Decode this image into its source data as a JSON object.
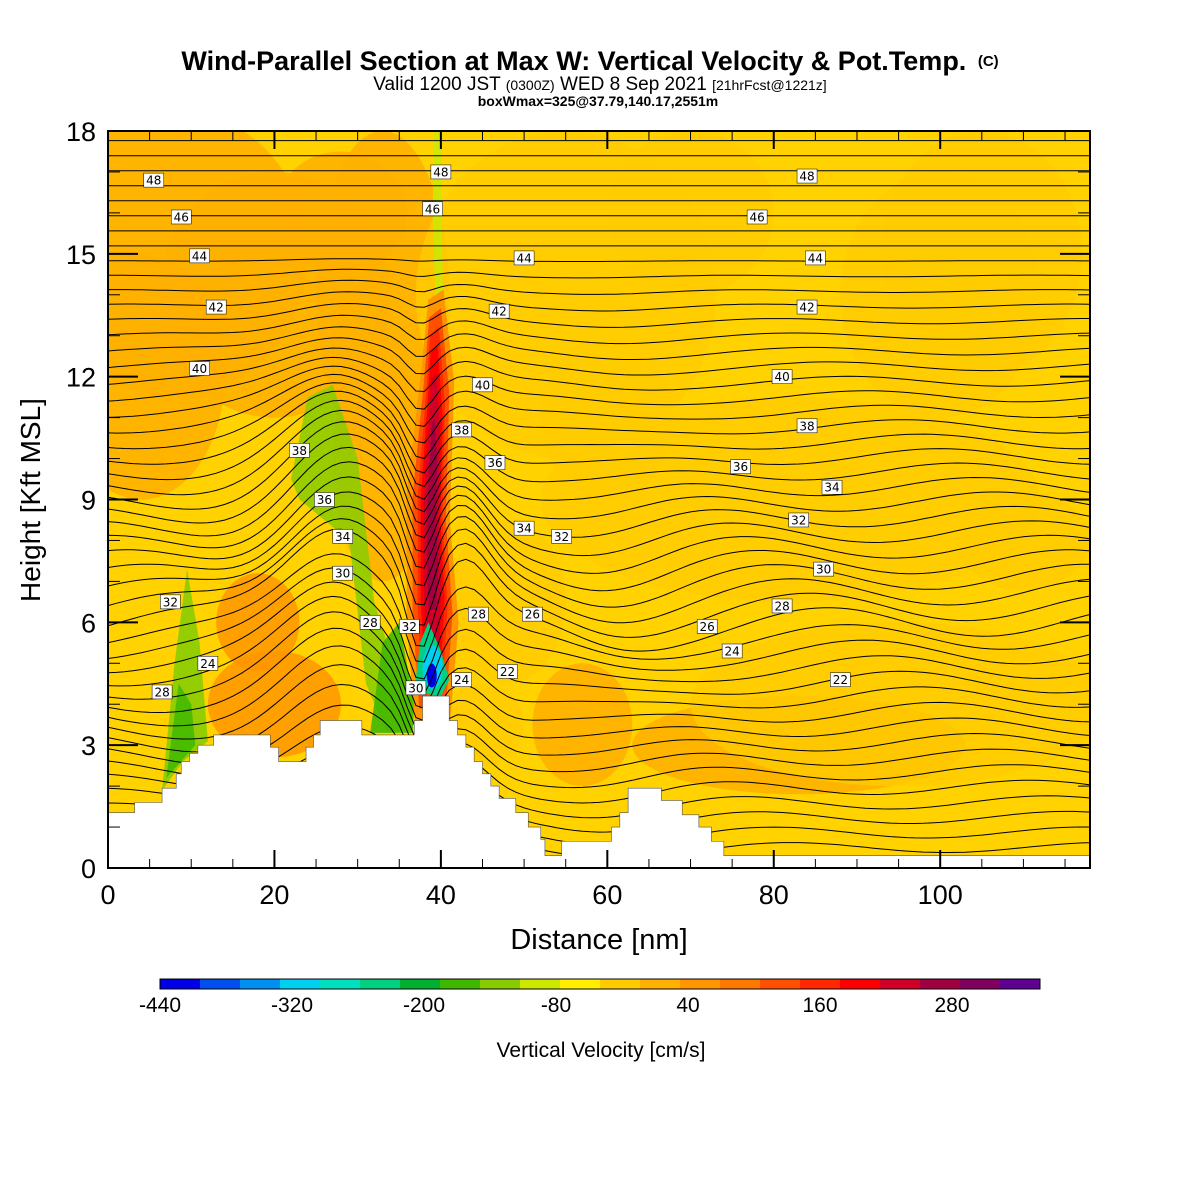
{
  "chart_data": {
    "type": "heatmap",
    "title_main": "Wind-Parallel Section at Max W: Vertical Velocity & Pot.Temp.",
    "title_mark": "(C)",
    "subtitle_a": "Valid 1200 JST",
    "subtitle_b": "(0300Z)",
    "subtitle_c": "WED 8 Sep 2021",
    "subtitle_d": "[21hrFcst@1221z]",
    "subtitle2": "boxWmax=325@37.79,140.17,2551m",
    "xlabel": "Distance [nm]",
    "ylabel": "Height [Kft MSL]",
    "xlim": [
      0,
      118
    ],
    "ylim": [
      0,
      18
    ],
    "x_ticks": [
      0,
      20,
      40,
      60,
      80,
      100
    ],
    "y_ticks": [
      0,
      3,
      6,
      9,
      12,
      15,
      18
    ],
    "colorbar": {
      "label": "Vertical Velocity [cm/s]",
      "min": -440,
      "max": 360,
      "step": 40,
      "tick_labels": [
        -440,
        -320,
        -200,
        -80,
        40,
        160,
        280
      ],
      "colors": [
        "#0000e6",
        "#0050f0",
        "#0090f0",
        "#00d0f0",
        "#00e0c0",
        "#00d080",
        "#00b030",
        "#40b800",
        "#88cc00",
        "#cce800",
        "#ffee00",
        "#ffcc00",
        "#ffb000",
        "#ff9600",
        "#ff7800",
        "#ff5000",
        "#ff2800",
        "#ff0000",
        "#d00028",
        "#a00040",
        "#800060",
        "#600090"
      ]
    },
    "terrain": [
      [
        0,
        1.35
      ],
      [
        3.2,
        1.35
      ],
      [
        3.2,
        1.6
      ],
      [
        6.5,
        1.6
      ],
      [
        6.5,
        1.95
      ],
      [
        8.2,
        1.95
      ],
      [
        8.2,
        2.3
      ],
      [
        8.8,
        2.3
      ],
      [
        8.8,
        2.6
      ],
      [
        9.8,
        2.6
      ],
      [
        9.8,
        2.8
      ],
      [
        10.8,
        2.8
      ],
      [
        10.8,
        3.0
      ],
      [
        12.7,
        3.0
      ],
      [
        12.7,
        3.25
      ],
      [
        19.5,
        3.25
      ],
      [
        19.5,
        2.95
      ],
      [
        20.5,
        2.95
      ],
      [
        20.5,
        2.6
      ],
      [
        23.8,
        2.6
      ],
      [
        23.8,
        2.95
      ],
      [
        24.7,
        2.95
      ],
      [
        24.7,
        3.25
      ],
      [
        25.5,
        3.25
      ],
      [
        25.5,
        3.6
      ],
      [
        30.5,
        3.6
      ],
      [
        30.5,
        3.25
      ],
      [
        36.8,
        3.25
      ],
      [
        36.8,
        3.6
      ],
      [
        37.8,
        3.6
      ],
      [
        37.8,
        4.2
      ],
      [
        41.0,
        4.2
      ],
      [
        41.0,
        3.6
      ],
      [
        42.0,
        3.6
      ],
      [
        42.0,
        3.25
      ],
      [
        43.0,
        3.25
      ],
      [
        43.0,
        2.95
      ],
      [
        44.0,
        2.95
      ],
      [
        44.0,
        2.6
      ],
      [
        45.0,
        2.6
      ],
      [
        45.0,
        2.3
      ],
      [
        46.0,
        2.3
      ],
      [
        46.0,
        2.0
      ],
      [
        47.0,
        2.0
      ],
      [
        47.0,
        1.7
      ],
      [
        49.0,
        1.7
      ],
      [
        49.0,
        1.35
      ],
      [
        50.5,
        1.35
      ],
      [
        50.5,
        1.0
      ],
      [
        52.0,
        1.0
      ],
      [
        52.0,
        0.7
      ],
      [
        52.5,
        0.7
      ],
      [
        52.5,
        0.3
      ],
      [
        54.5,
        0.3
      ],
      [
        54.5,
        0.65
      ],
      [
        60.5,
        0.65
      ],
      [
        60.5,
        1.0
      ],
      [
        61.5,
        1.0
      ],
      [
        61.5,
        1.35
      ],
      [
        62.5,
        1.35
      ],
      [
        62.5,
        1.95
      ],
      [
        66.5,
        1.95
      ],
      [
        66.5,
        1.65
      ],
      [
        69.0,
        1.65
      ],
      [
        69.0,
        1.3
      ],
      [
        71.0,
        1.3
      ],
      [
        71.0,
        1.0
      ],
      [
        72.5,
        1.0
      ],
      [
        72.5,
        0.65
      ],
      [
        74.0,
        0.65
      ],
      [
        74.0,
        0.3
      ],
      [
        118,
        0.3
      ]
    ],
    "updraft_core": [
      [
        38.2,
        4.5
      ],
      [
        37.8,
        6.5
      ],
      [
        37.8,
        9.0
      ],
      [
        38.5,
        11.5
      ],
      [
        38.8,
        12.8
      ],
      [
        39.5,
        13.0
      ],
      [
        40.0,
        11.2
      ],
      [
        39.8,
        8.5
      ],
      [
        40.2,
        6.5
      ],
      [
        39.8,
        4.5
      ]
    ],
    "downdraft_core": [
      [
        36.8,
        4.3
      ],
      [
        37.5,
        5.5
      ],
      [
        38.5,
        6.0
      ],
      [
        40.0,
        5.3
      ],
      [
        41.0,
        4.6
      ],
      [
        40.0,
        4.2
      ]
    ],
    "contour_labels": [
      {
        "text": "48",
        "x": 5.5,
        "y": 16.8
      },
      {
        "text": "46",
        "x": 8.8,
        "y": 15.9
      },
      {
        "text": "44",
        "x": 11,
        "y": 14.95
      },
      {
        "text": "42",
        "x": 13,
        "y": 13.7
      },
      {
        "text": "40",
        "x": 11,
        "y": 12.2
      },
      {
        "text": "38",
        "x": 23,
        "y": 10.2
      },
      {
        "text": "36",
        "x": 26,
        "y": 9.0
      },
      {
        "text": "34",
        "x": 28.2,
        "y": 8.1
      },
      {
        "text": "30",
        "x": 28.2,
        "y": 7.2
      },
      {
        "text": "28",
        "x": 31.5,
        "y": 6.0
      },
      {
        "text": "32",
        "x": 36.2,
        "y": 5.9
      },
      {
        "text": "30",
        "x": 37,
        "y": 4.4
      },
      {
        "text": "32",
        "x": 7.5,
        "y": 6.5
      },
      {
        "text": "24",
        "x": 12,
        "y": 5.0
      },
      {
        "text": "28",
        "x": 6.5,
        "y": 4.3
      },
      {
        "text": "48",
        "x": 40,
        "y": 17.0
      },
      {
        "text": "46",
        "x": 39,
        "y": 16.1
      },
      {
        "text": "44",
        "x": 50,
        "y": 14.9
      },
      {
        "text": "42",
        "x": 47,
        "y": 13.6
      },
      {
        "text": "40",
        "x": 45,
        "y": 11.8
      },
      {
        "text": "38",
        "x": 42.5,
        "y": 10.7
      },
      {
        "text": "36",
        "x": 46.5,
        "y": 9.9
      },
      {
        "text": "34",
        "x": 50,
        "y": 8.3
      },
      {
        "text": "32",
        "x": 54.5,
        "y": 8.1
      },
      {
        "text": "28",
        "x": 44.5,
        "y": 6.2
      },
      {
        "text": "26",
        "x": 51,
        "y": 6.2
      },
      {
        "text": "24",
        "x": 42.5,
        "y": 4.6
      },
      {
        "text": "22",
        "x": 48,
        "y": 4.8
      },
      {
        "text": "48",
        "x": 84,
        "y": 16.9
      },
      {
        "text": "46",
        "x": 78,
        "y": 15.9
      },
      {
        "text": "44",
        "x": 85,
        "y": 14.9
      },
      {
        "text": "42",
        "x": 84,
        "y": 13.7
      },
      {
        "text": "40",
        "x": 81,
        "y": 12.0
      },
      {
        "text": "38",
        "x": 84,
        "y": 10.8
      },
      {
        "text": "36",
        "x": 76,
        "y": 9.8
      },
      {
        "text": "34",
        "x": 87,
        "y": 9.3
      },
      {
        "text": "32",
        "x": 83,
        "y": 8.5
      },
      {
        "text": "30",
        "x": 86,
        "y": 7.3
      },
      {
        "text": "28",
        "x": 81,
        "y": 6.4
      },
      {
        "text": "26",
        "x": 72,
        "y": 5.9
      },
      {
        "text": "24",
        "x": 75,
        "y": 5.3
      },
      {
        "text": "22",
        "x": 88,
        "y": 4.6
      }
    ]
  }
}
